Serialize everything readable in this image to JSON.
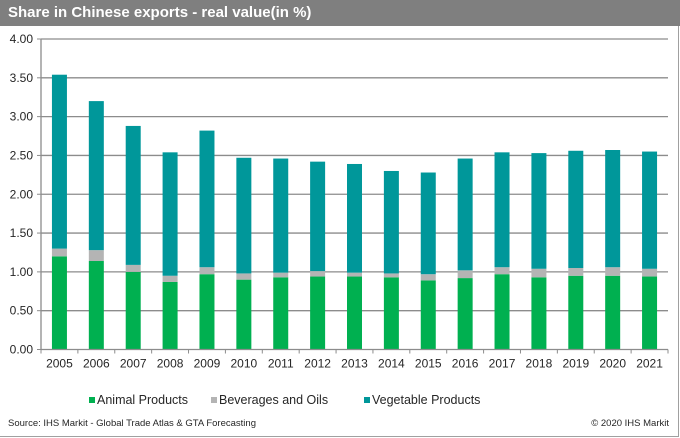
{
  "header": {
    "title": "Share in Chinese exports - real value(in %)"
  },
  "footer": {
    "source": "Source: IHS Markit - Global Trade Atlas & GTA Forecasting",
    "copyright": "© 2020 IHS Markit"
  },
  "chart_data": {
    "type": "bar",
    "stacked": true,
    "title": "Share in Chinese exports - real value(in %)",
    "xlabel": "",
    "ylabel": "",
    "ylim": [
      0,
      4
    ],
    "yticks": [
      "0.00",
      "0.50",
      "1.00",
      "1.50",
      "2.00",
      "2.50",
      "3.00",
      "3.50",
      "4.00"
    ],
    "grid": "horizontal",
    "legend_position": "bottom",
    "categories": [
      "2005",
      "2006",
      "2007",
      "2008",
      "2009",
      "2010",
      "2011",
      "2012",
      "2013",
      "2014",
      "2015",
      "2016",
      "2017",
      "2018",
      "2019",
      "2020",
      "2021"
    ],
    "series": [
      {
        "name": "Animal Products",
        "color": "#00B050",
        "values": [
          1.2,
          1.14,
          1.0,
          0.87,
          0.97,
          0.9,
          0.93,
          0.94,
          0.94,
          0.93,
          0.89,
          0.92,
          0.97,
          0.93,
          0.95,
          0.95,
          0.94
        ]
      },
      {
        "name": "Beverages and Oils",
        "color": "#B4B4B4",
        "values": [
          0.1,
          0.14,
          0.09,
          0.08,
          0.09,
          0.08,
          0.06,
          0.07,
          0.05,
          0.05,
          0.08,
          0.1,
          0.09,
          0.11,
          0.1,
          0.11,
          0.1
        ]
      },
      {
        "name": "Vegetable Products",
        "color": "#00979A",
        "values": [
          2.24,
          1.92,
          1.79,
          1.59,
          1.76,
          1.49,
          1.47,
          1.41,
          1.4,
          1.32,
          1.31,
          1.44,
          1.48,
          1.49,
          1.51,
          1.51,
          1.51
        ]
      }
    ]
  }
}
